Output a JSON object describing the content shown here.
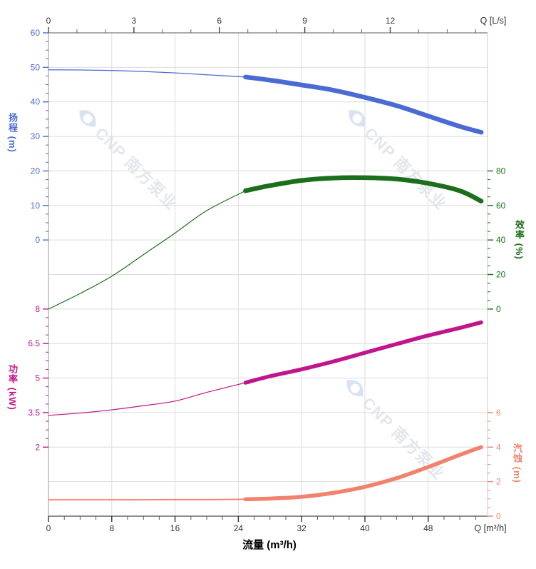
{
  "watermark": {
    "text": "CNP 南方泵业",
    "text_color": "#e3e6ec",
    "logo_color": "#d7e2f2",
    "logo": "cnp-eye-logo"
  },
  "colors": {
    "head": "#4a6bd3",
    "efficiency": "#1b6e1b",
    "power": "#c0158c",
    "npsh": "#f0826e",
    "grid": "#dcdcdc",
    "frame_top": "#7a7a7a",
    "frame_bottom": "#4a4a4a",
    "frame_left": "#9a9a9a",
    "frame_right": "#c8c8c8",
    "axis_text": "#333333"
  },
  "chart_data": {
    "type": "line",
    "title": "",
    "grid": true,
    "grid_rows": 14,
    "x_axis": {
      "title": "流量 (m³/h)",
      "label_top": "Q [L/s]",
      "label_bottom": "Q [m³/h]",
      "ticks_m3h": [
        0,
        8,
        16,
        24,
        32,
        40,
        48
      ],
      "minor_step_m3h": 2,
      "ticks_ls": [
        0,
        3,
        6,
        9,
        12
      ],
      "minor_step_ls": 1,
      "range_m3h": [
        0,
        55.5
      ],
      "range_ls": [
        0,
        15.4
      ],
      "ls_to_m3h": 3.6
    },
    "y_axes": [
      {
        "id": "head",
        "title": "扬程 (m)",
        "unit": "m",
        "side": "left",
        "color": "#4a6bd3",
        "ticks": [
          60,
          50,
          40,
          30,
          20,
          10,
          0
        ],
        "grid_rows": [
          0,
          6
        ]
      },
      {
        "id": "efficiency",
        "title": "效率 (%)",
        "unit": "%",
        "side": "right",
        "color": "#1b6e1b",
        "ticks": [
          80,
          60,
          40,
          20,
          0
        ],
        "grid_rows": [
          4,
          8
        ]
      },
      {
        "id": "power",
        "title": "功率 (kW)",
        "unit": "kW",
        "side": "left",
        "color": "#c0158c",
        "ticks": [
          8,
          6.5,
          5,
          3.5,
          2
        ],
        "grid_rows": [
          8,
          12
        ]
      },
      {
        "id": "npsh",
        "title": "汽蚀 (m)",
        "unit": "m",
        "side": "right",
        "color": "#f0826e",
        "ticks": [
          6,
          4,
          2,
          0
        ],
        "grid_rows": [
          11,
          14
        ]
      }
    ],
    "duty_split_m3h": 24.9,
    "series": [
      {
        "name": "head-curve",
        "axis": "head",
        "color": "#4a6bd3",
        "thin_width": 1.3,
        "thick_width": 6.5,
        "x": [
          0,
          4,
          8,
          12,
          16,
          20,
          24.9,
          28,
          32,
          36,
          40,
          44,
          48,
          52,
          54.7
        ],
        "y": [
          49.3,
          49.25,
          49.1,
          48.8,
          48.4,
          47.85,
          47.2,
          46.3,
          44.9,
          43.4,
          41.3,
          38.9,
          35.9,
          32.9,
          31.2
        ]
      },
      {
        "name": "efficiency-curve",
        "axis": "efficiency",
        "color": "#1b6e1b",
        "thin_width": 1.2,
        "thick_width": 6.5,
        "x": [
          0,
          4,
          8,
          12,
          16,
          20,
          24.9,
          28,
          32,
          36,
          40,
          44,
          48,
          52,
          54.7
        ],
        "y": [
          0,
          9,
          19,
          31.5,
          44,
          57,
          68.5,
          71.5,
          74.5,
          75.9,
          76.1,
          75.3,
          72.8,
          68.5,
          62.5
        ]
      },
      {
        "name": "power-curve",
        "axis": "power",
        "color": "#c0158c",
        "thin_width": 1.2,
        "thick_width": 5.5,
        "x": [
          0,
          4,
          8,
          12,
          16,
          20,
          24.9,
          28,
          32,
          36,
          40,
          44,
          48,
          52,
          54.7
        ],
        "y": [
          3.38,
          3.48,
          3.62,
          3.8,
          4.0,
          4.38,
          4.8,
          5.08,
          5.38,
          5.72,
          6.1,
          6.48,
          6.85,
          7.18,
          7.42
        ]
      },
      {
        "name": "npsh-curve",
        "axis": "npsh",
        "color": "#f0826e",
        "thin_width": 1.8,
        "thick_width": 5.5,
        "x": [
          0,
          4,
          8,
          12,
          16,
          20,
          24.9,
          28,
          32,
          36,
          40,
          44,
          48,
          52,
          54.7
        ],
        "y": [
          0.95,
          0.95,
          0.95,
          0.95,
          0.96,
          0.96,
          0.98,
          1.02,
          1.12,
          1.35,
          1.7,
          2.2,
          2.85,
          3.55,
          4.0
        ]
      }
    ]
  }
}
